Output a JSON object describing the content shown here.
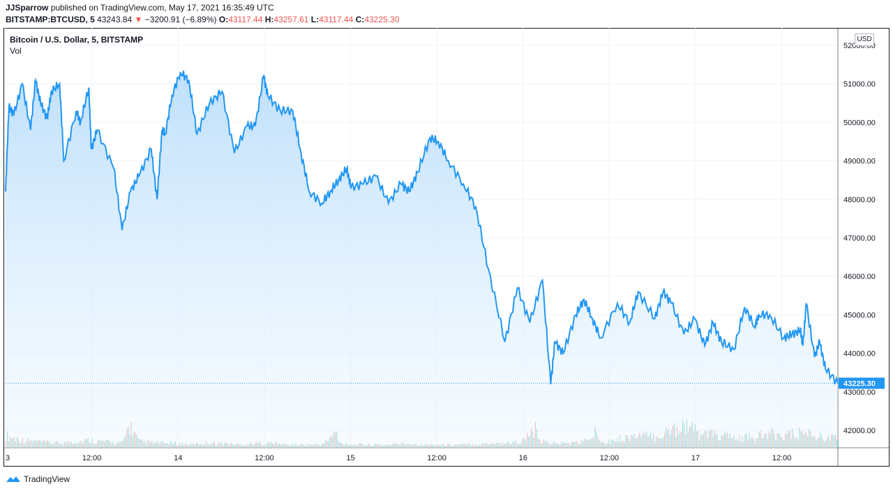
{
  "header": {
    "author": "JJSparrow",
    "published": " published on TradingView.com, May 17, 2021 16:35:49 UTC",
    "symbol": "BITSTAMP:BTCUSD, 5",
    "price": "43243.84",
    "change": "−3200.91 (−6.89%)",
    "o_label": "O:",
    "o_value": "43117.44",
    "h_label": "H:",
    "h_value": "43257.61",
    "l_label": "L:",
    "l_value": "43117.44",
    "c_label": "C:",
    "c_value": "43225.30"
  },
  "legend": {
    "title": "Bitcoin / U.S. Dollar, 5, BITSTAMP",
    "vol": "Vol"
  },
  "currency_button": "USD",
  "footer": {
    "brand": "TradingView"
  },
  "colors": {
    "line": "#2196f3",
    "area_top": "#bbdefb",
    "vol_up": "#80cbc4",
    "vol_down": "#ef9a9a",
    "last_price": "#2196f3"
  },
  "chart_data": {
    "type": "area",
    "title": "Bitcoin / U.S. Dollar, 5, BITSTAMP",
    "xlabel": "",
    "ylabel": "",
    "x_ticks": [
      "3",
      "12:00",
      "14",
      "12:00",
      "15",
      "12:00",
      "16",
      "12:00",
      "17",
      "12:00"
    ],
    "y_ticks": [
      42000,
      43000,
      44000,
      45000,
      46000,
      47000,
      48000,
      49000,
      50000,
      51000,
      52000
    ],
    "y_tick_labels": [
      "42000.00",
      "43000.00",
      "44000.00",
      "45000.00",
      "46000.00",
      "47000.00",
      "48000.00",
      "49000.00",
      "50000.00",
      "51000.00",
      "52000.00"
    ],
    "ylim": [
      41550,
      52450
    ],
    "xlim": [
      0,
      1
    ],
    "last_value": 43225.3,
    "last_value_label": "43225.30",
    "grid": true,
    "price_series": {
      "name": "",
      "x": [
        0,
        0.004,
        0.01,
        0.02,
        0.03,
        0.036,
        0.042,
        0.05,
        0.055,
        0.065,
        0.07,
        0.085,
        0.09,
        0.1,
        0.103,
        0.11,
        0.13,
        0.14,
        0.15,
        0.16,
        0.175,
        0.182,
        0.188,
        0.192,
        0.2,
        0.21,
        0.22,
        0.23,
        0.245,
        0.26,
        0.275,
        0.29,
        0.3,
        0.31,
        0.315,
        0.33,
        0.345,
        0.355,
        0.365,
        0.38,
        0.39,
        0.4,
        0.41,
        0.415,
        0.43,
        0.445,
        0.46,
        0.475,
        0.485,
        0.495,
        0.51,
        0.52,
        0.532,
        0.55,
        0.565,
        0.58,
        0.6,
        0.615,
        0.63,
        0.645,
        0.655,
        0.66,
        0.67,
        0.685,
        0.695,
        0.705,
        0.715,
        0.735,
        0.75,
        0.76,
        0.78,
        0.79,
        0.8,
        0.815,
        0.828,
        0.84,
        0.85,
        0.86,
        0.875,
        0.888,
        0.9,
        0.905,
        0.918,
        0.935,
        0.945,
        0.955,
        0.958,
        0.962,
        0.972,
        0.978,
        0.985,
        1.0
      ],
      "y": [
        48200,
        50400,
        50200,
        51000,
        49800,
        51100,
        50500,
        50100,
        50800,
        51000,
        49000,
        50300,
        50000,
        50900,
        49300,
        49800,
        48800,
        47200,
        48200,
        48600,
        49300,
        48000,
        49800,
        49700,
        50700,
        51300,
        51100,
        49700,
        50500,
        50800,
        49200,
        49900,
        49900,
        51200,
        50700,
        50300,
        50300,
        49200,
        48200,
        47900,
        48200,
        48500,
        48800,
        48300,
        48400,
        48600,
        47900,
        48400,
        48200,
        48700,
        49600,
        49500,
        49000,
        48400,
        47800,
        46200,
        44300,
        45700,
        44800,
        45900,
        43200,
        44300,
        44000,
        45000,
        45400,
        44900,
        44400,
        45300,
        44800,
        45600,
        44900,
        45600,
        45300,
        44500,
        44900,
        44200,
        44800,
        44300,
        44100,
        45200,
        44700,
        45000,
        45000,
        44400,
        44500,
        44600,
        44200,
        45300,
        43900,
        44300,
        43600,
        43225
      ]
    },
    "volume_series": {
      "name": "",
      "x": [
        0,
        0.02,
        0.04,
        0.06,
        0.08,
        0.1,
        0.12,
        0.14,
        0.148,
        0.16,
        0.18,
        0.2,
        0.22,
        0.24,
        0.26,
        0.28,
        0.3,
        0.32,
        0.34,
        0.36,
        0.38,
        0.397,
        0.4,
        0.42,
        0.44,
        0.46,
        0.48,
        0.5,
        0.52,
        0.54,
        0.56,
        0.58,
        0.6,
        0.62,
        0.636,
        0.64,
        0.66,
        0.68,
        0.7,
        0.708,
        0.72,
        0.74,
        0.76,
        0.78,
        0.8,
        0.815,
        0.82,
        0.83,
        0.84,
        0.86,
        0.88,
        0.9,
        0.92,
        0.94,
        0.96,
        0.98,
        1.0
      ],
      "y": [
        8,
        5,
        4,
        3,
        4,
        5,
        4,
        3,
        15,
        4,
        3,
        3,
        2,
        3,
        3,
        2,
        3,
        3,
        2,
        2,
        2,
        10,
        3,
        2,
        2,
        2,
        3,
        2,
        2,
        2,
        2,
        3,
        3,
        4,
        12,
        4,
        3,
        3,
        5,
        10,
        4,
        6,
        8,
        7,
        12,
        16,
        14,
        10,
        9,
        8,
        6,
        7,
        9,
        8,
        10,
        7,
        6
      ]
    }
  }
}
